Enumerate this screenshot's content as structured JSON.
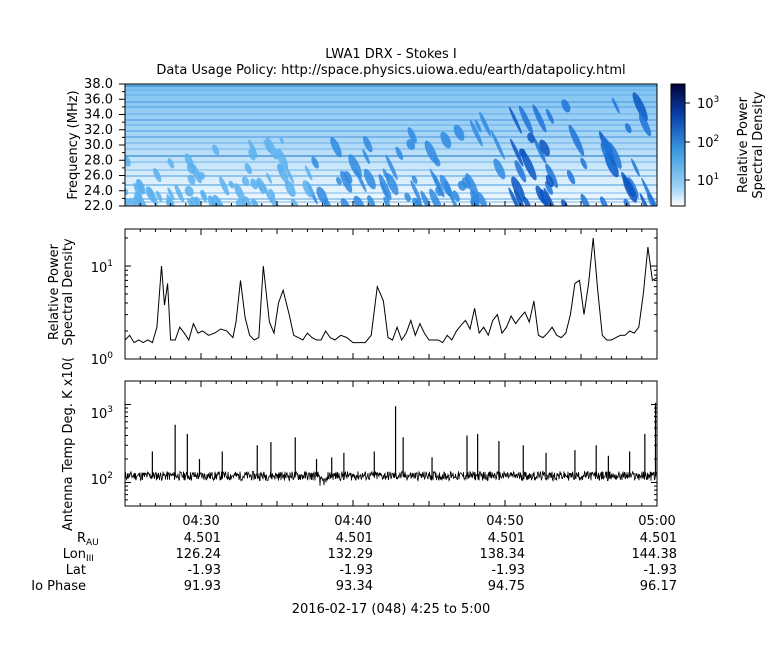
{
  "header": {
    "title": "LWA1 DRX - Stokes I",
    "subtitle": "Data Usage Policy: http://space.physics.uiowa.edu/earth/datapolicy.html"
  },
  "chart_data": [
    {
      "type": "heatmap",
      "ylabel": "Frequency (MHz)",
      "ylim": [
        22,
        38
      ],
      "yticks": [
        "22.0",
        "24.0",
        "26.0",
        "28.0",
        "30.0",
        "32.0",
        "34.0",
        "36.0",
        "38.0"
      ],
      "colorbar": {
        "label_line1": "Relative Power",
        "label_line2": "Spectral Density",
        "scale": "log",
        "ticks": [
          "10",
          "10",
          "10"
        ],
        "tick_exponents": [
          "1",
          "2",
          "3"
        ],
        "range": [
          3,
          2000
        ],
        "colors": [
          "#ffffff",
          "#9fd3f7",
          "#3a9be0",
          "#0a3fa8",
          "#00033a"
        ]
      }
    },
    {
      "type": "line",
      "ylabel_line1": "Relative Power",
      "ylabel_line2": "Spectral Density",
      "yscale": "log",
      "ylim": [
        1,
        25
      ],
      "yticks": [
        {
          "base": "10",
          "exp": "0"
        },
        {
          "base": "10",
          "exp": "1"
        }
      ],
      "xlim": [
        25,
        60
      ],
      "series": [
        {
          "x": [
            25.0,
            25.3,
            25.6,
            25.9,
            26.2,
            26.5,
            26.8,
            27.1,
            27.4,
            27.6,
            27.8,
            28.0,
            28.3,
            28.6,
            28.9,
            29.2,
            29.5,
            29.8,
            30.1,
            30.5,
            30.9,
            31.3,
            31.7,
            32.1,
            32.3,
            32.6,
            32.9,
            33.2,
            33.5,
            33.8,
            34.1,
            34.5,
            34.8,
            35.1,
            35.4,
            35.8,
            36.1,
            36.4,
            36.7,
            37.0,
            37.3,
            37.6,
            37.9,
            38.2,
            38.5,
            38.8,
            39.2,
            39.6,
            40.0,
            40.4,
            40.8,
            41.2,
            41.6,
            42.0,
            42.3,
            42.6,
            42.9,
            43.2,
            43.5,
            43.8,
            44.1,
            44.4,
            44.7,
            45.0,
            45.3,
            45.6,
            45.9,
            46.2,
            46.5,
            46.8,
            47.1,
            47.4,
            47.7,
            48.0,
            48.3,
            48.6,
            48.9,
            49.2,
            49.5,
            49.8,
            50.1,
            50.4,
            50.7,
            51.0,
            51.3,
            51.6,
            51.9,
            52.2,
            52.5,
            52.8,
            53.1,
            53.4,
            53.7,
            54.0,
            54.3,
            54.6,
            54.9,
            55.2,
            55.5,
            55.8,
            56.1,
            56.4,
            56.7,
            57.0,
            57.3,
            57.6,
            57.9,
            58.2,
            58.5,
            58.8,
            59.1,
            59.4,
            59.7,
            60.0
          ],
          "values": [
            1.6,
            1.8,
            1.5,
            1.6,
            1.5,
            1.6,
            1.5,
            2.2,
            10.0,
            3.8,
            6.5,
            1.6,
            1.6,
            2.2,
            1.9,
            1.6,
            2.4,
            1.9,
            2.0,
            1.8,
            1.9,
            2.1,
            2.0,
            1.7,
            2.5,
            7.0,
            2.8,
            1.8,
            1.6,
            1.7,
            10.0,
            2.5,
            1.9,
            4.0,
            5.5,
            3.0,
            1.8,
            1.7,
            1.6,
            1.9,
            1.7,
            1.6,
            1.6,
            2.0,
            1.7,
            1.6,
            1.8,
            1.7,
            1.5,
            1.5,
            1.5,
            1.8,
            6.0,
            4.2,
            1.7,
            1.6,
            2.2,
            1.6,
            1.9,
            2.6,
            1.8,
            2.4,
            1.9,
            1.6,
            1.6,
            1.6,
            1.5,
            1.8,
            1.6,
            2.0,
            2.3,
            2.6,
            2.1,
            3.5,
            1.9,
            2.2,
            1.8,
            2.6,
            3.0,
            1.9,
            2.2,
            2.9,
            2.4,
            2.8,
            3.2,
            2.5,
            4.2,
            1.8,
            1.7,
            1.9,
            2.2,
            1.8,
            1.7,
            1.9,
            3.0,
            6.5,
            7.0,
            3.0,
            6.5,
            20.0,
            5.5,
            1.8,
            1.6,
            1.6,
            1.7,
            1.8,
            1.8,
            2.0,
            1.9,
            2.2,
            5.0,
            16.0,
            7.0,
            7.5
          ]
        }
      ]
    },
    {
      "type": "line",
      "ylabel": "Antenna Temp Deg. K x10(",
      "yscale": "log",
      "ylim": [
        50,
        2000
      ],
      "yticks": [
        {
          "base": "10",
          "exp": "2"
        },
        {
          "base": "10",
          "exp": "3"
        }
      ],
      "xlim": [
        25,
        60
      ],
      "baseline": 120,
      "spikes": [
        {
          "x": 26.8,
          "y": 250
        },
        {
          "x": 28.3,
          "y": 550
        },
        {
          "x": 29.1,
          "y": 420
        },
        {
          "x": 29.9,
          "y": 200
        },
        {
          "x": 31.4,
          "y": 250
        },
        {
          "x": 33.7,
          "y": 300
        },
        {
          "x": 34.6,
          "y": 330
        },
        {
          "x": 36.2,
          "y": 380
        },
        {
          "x": 37.6,
          "y": 200
        },
        {
          "x": 38.6,
          "y": 210
        },
        {
          "x": 39.4,
          "y": 240
        },
        {
          "x": 41.4,
          "y": 250
        },
        {
          "x": 42.8,
          "y": 950
        },
        {
          "x": 43.3,
          "y": 380
        },
        {
          "x": 45.2,
          "y": 210
        },
        {
          "x": 47.5,
          "y": 400
        },
        {
          "x": 48.2,
          "y": 420
        },
        {
          "x": 49.6,
          "y": 340
        },
        {
          "x": 51.2,
          "y": 300
        },
        {
          "x": 52.7,
          "y": 240
        },
        {
          "x": 54.6,
          "y": 260
        },
        {
          "x": 56.0,
          "y": 300
        },
        {
          "x": 56.8,
          "y": 220
        },
        {
          "x": 58.2,
          "y": 250
        },
        {
          "x": 59.2,
          "y": 420
        },
        {
          "x": 59.9,
          "y": 1050
        }
      ]
    }
  ],
  "x_axis": {
    "ticks": [
      "04:30",
      "04:40",
      "04:50",
      "05:00"
    ],
    "tick_positions_min": [
      30,
      40,
      50,
      60
    ],
    "date_label": "2016-02-17 (048) 4:25 to 5:00"
  },
  "ephemeris": {
    "rows": [
      {
        "label": "R",
        "sub": "AU",
        "values": [
          "4.501",
          "4.501",
          "4.501",
          "4.501"
        ]
      },
      {
        "label": "Lon",
        "sub": "III",
        "values": [
          "126.24",
          "132.29",
          "138.34",
          "144.38"
        ]
      },
      {
        "label": "Lat",
        "sub": "",
        "values": [
          "-1.93",
          "-1.93",
          "-1.93",
          "-1.93"
        ]
      },
      {
        "label": "Io Phase",
        "sub": "",
        "values": [
          "91.93",
          "93.34",
          "94.75",
          "96.17"
        ]
      }
    ]
  }
}
